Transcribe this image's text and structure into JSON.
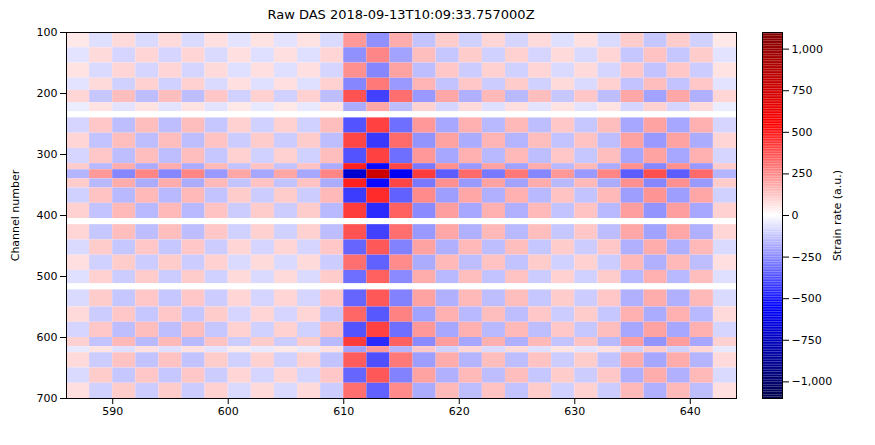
{
  "chart_data": {
    "type": "heatmap",
    "title": "Raw DAS 2018-09-13T10:09:33.757000Z",
    "y_label": "Channel number",
    "xlim": [
      586,
      644
    ],
    "xticks": [
      590,
      600,
      610,
      620,
      630,
      640
    ],
    "ylim": [
      100,
      700
    ],
    "yticks": [
      100,
      200,
      300,
      400,
      500,
      600,
      700
    ],
    "x_edges": [
      586,
      588,
      590,
      592,
      594,
      596,
      598,
      600,
      602,
      604,
      606,
      608,
      610,
      612,
      614,
      616,
      618,
      620,
      622,
      624,
      626,
      628,
      630,
      632,
      634,
      636,
      638,
      640,
      642,
      644
    ],
    "y_edges": [
      100,
      125,
      150,
      175,
      195,
      215,
      230,
      240,
      265,
      290,
      315,
      325,
      340,
      355,
      380,
      405,
      415,
      440,
      465,
      490,
      512,
      522,
      550,
      575,
      600,
      615,
      625,
      650,
      675,
      700
    ],
    "values": [
      [
        50,
        -70,
        80,
        -80,
        80,
        -80,
        70,
        -60,
        60,
        -60,
        60,
        -80,
        220,
        -240,
        180,
        -130,
        110,
        -100,
        90,
        -90,
        80,
        -70,
        70,
        -80,
        110,
        -120,
        110,
        -100,
        50
      ],
      [
        -60,
        80,
        -90,
        90,
        -90,
        90,
        -80,
        70,
        -70,
        70,
        -70,
        90,
        -240,
        260,
        -200,
        140,
        -120,
        110,
        -100,
        100,
        -90,
        80,
        -80,
        90,
        -120,
        130,
        -120,
        110,
        -60
      ],
      [
        60,
        -80,
        90,
        -90,
        90,
        -90,
        80,
        -70,
        70,
        -70,
        70,
        -90,
        240,
        -260,
        200,
        -140,
        120,
        -110,
        100,
        -100,
        90,
        -80,
        80,
        -90,
        120,
        -130,
        120,
        -110,
        60
      ],
      [
        -60,
        80,
        -100,
        100,
        -100,
        100,
        -80,
        70,
        -70,
        70,
        -70,
        100,
        -260,
        290,
        -220,
        160,
        -130,
        120,
        -110,
        110,
        -100,
        80,
        -80,
        100,
        -130,
        140,
        -130,
        120,
        -60
      ],
      [
        90,
        -120,
        140,
        -140,
        140,
        -140,
        120,
        -100,
        100,
        -100,
        100,
        -140,
        370,
        -410,
        310,
        -220,
        190,
        -170,
        150,
        -150,
        140,
        -120,
        120,
        -140,
        190,
        -200,
        190,
        -170,
        90
      ],
      [
        -40,
        60,
        -60,
        60,
        -60,
        60,
        -60,
        50,
        -50,
        50,
        -50,
        60,
        -180,
        190,
        -140,
        100,
        -90,
        80,
        -70,
        70,
        -60,
        60,
        -60,
        60,
        -90,
        100,
        -90,
        80,
        -40
      ],
      [
        0,
        0,
        0,
        0,
        0,
        0,
        0,
        0,
        0,
        0,
        0,
        0,
        0,
        0,
        0,
        0,
        0,
        0,
        0,
        0,
        0,
        0,
        0,
        0,
        0,
        0,
        0,
        0,
        0
      ],
      [
        -90,
        120,
        -140,
        140,
        -140,
        140,
        -120,
        100,
        -100,
        100,
        -100,
        140,
        -370,
        410,
        -310,
        220,
        -190,
        170,
        -150,
        150,
        -140,
        120,
        -120,
        140,
        -190,
        200,
        -190,
        170,
        -90
      ],
      [
        90,
        -130,
        140,
        -140,
        140,
        -140,
        130,
        -110,
        110,
        -110,
        110,
        -140,
        400,
        -430,
        320,
        -230,
        200,
        -180,
        160,
        -160,
        140,
        -130,
        130,
        -140,
        200,
        -220,
        200,
        -180,
        90
      ],
      [
        -90,
        120,
        -140,
        140,
        -140,
        140,
        -120,
        100,
        -100,
        100,
        -100,
        140,
        -370,
        410,
        -310,
        220,
        -190,
        170,
        -150,
        150,
        -140,
        120,
        -120,
        140,
        -190,
        200,
        -190,
        170,
        -90
      ],
      [
        110,
        -150,
        180,
        -180,
        180,
        -180,
        150,
        -130,
        130,
        -130,
        130,
        -180,
        480,
        -530,
        400,
        -290,
        240,
        -220,
        200,
        -200,
        180,
        -150,
        150,
        -180,
        240,
        -260,
        240,
        -220,
        110
      ],
      [
        -160,
        220,
        -260,
        260,
        -260,
        260,
        -220,
        190,
        -190,
        190,
        -190,
        260,
        -700,
        770,
        -580,
        420,
        -350,
        320,
        -290,
        290,
        -260,
        220,
        -220,
        260,
        -350,
        380,
        -350,
        320,
        -160
      ],
      [
        110,
        -150,
        180,
        -180,
        180,
        -180,
        150,
        -130,
        130,
        -130,
        130,
        -180,
        480,
        -530,
        400,
        -290,
        240,
        -220,
        200,
        -200,
        180,
        -150,
        150,
        -180,
        240,
        -260,
        240,
        -220,
        110
      ],
      [
        -100,
        130,
        -150,
        150,
        -150,
        150,
        -130,
        110,
        -110,
        110,
        -110,
        150,
        -420,
        460,
        -340,
        250,
        -210,
        190,
        -170,
        170,
        -150,
        130,
        -130,
        150,
        -210,
        230,
        -210,
        190,
        -100
      ],
      [
        100,
        -130,
        150,
        -150,
        150,
        -150,
        130,
        -110,
        110,
        -110,
        110,
        -150,
        420,
        -460,
        340,
        -250,
        210,
        -190,
        170,
        -170,
        150,
        -130,
        130,
        -150,
        210,
        -230,
        210,
        -190,
        100
      ],
      [
        0,
        0,
        0,
        0,
        0,
        0,
        0,
        0,
        0,
        0,
        0,
        0,
        0,
        0,
        0,
        0,
        0,
        0,
        0,
        0,
        0,
        0,
        0,
        0,
        0,
        0,
        0,
        0,
        0
      ],
      [
        90,
        -120,
        140,
        -140,
        140,
        -140,
        120,
        -100,
        100,
        -100,
        100,
        -140,
        370,
        -410,
        310,
        -220,
        190,
        -170,
        150,
        -150,
        140,
        -120,
        120,
        -140,
        190,
        -200,
        190,
        -170,
        90
      ],
      [
        -80,
        110,
        -120,
        120,
        -120,
        120,
        -110,
        90,
        -90,
        90,
        -90,
        120,
        -330,
        360,
        -270,
        200,
        -170,
        150,
        -140,
        140,
        -120,
        110,
        -110,
        120,
        -170,
        180,
        -170,
        150,
        -80
      ],
      [
        70,
        -100,
        110,
        -110,
        110,
        -110,
        100,
        -80,
        80,
        -80,
        80,
        -110,
        310,
        -340,
        250,
        -180,
        150,
        -140,
        130,
        -130,
        110,
        -100,
        100,
        -110,
        150,
        -170,
        150,
        -140,
        70
      ],
      [
        -70,
        100,
        -110,
        110,
        -110,
        110,
        -100,
        80,
        -80,
        80,
        -80,
        110,
        -310,
        340,
        -250,
        180,
        -150,
        140,
        -130,
        130,
        -110,
        100,
        -100,
        110,
        -150,
        170,
        -150,
        140,
        -70
      ],
      [
        0,
        0,
        0,
        0,
        0,
        0,
        0,
        0,
        0,
        0,
        0,
        0,
        0,
        0,
        0,
        0,
        0,
        0,
        0,
        0,
        0,
        0,
        0,
        0,
        0,
        0,
        0,
        0,
        0
      ],
      [
        -80,
        110,
        -120,
        120,
        -120,
        120,
        -110,
        90,
        -90,
        90,
        -90,
        120,
        -330,
        360,
        -270,
        200,
        -170,
        150,
        -140,
        140,
        -120,
        110,
        -110,
        120,
        -170,
        180,
        -170,
        150,
        -80
      ],
      [
        80,
        -110,
        120,
        -120,
        120,
        -120,
        110,
        -90,
        90,
        -90,
        90,
        -120,
        330,
        -360,
        270,
        -200,
        170,
        -150,
        140,
        -140,
        120,
        -110,
        110,
        -120,
        170,
        -180,
        170,
        -150,
        80
      ],
      [
        -90,
        120,
        -140,
        140,
        -140,
        140,
        -120,
        100,
        -100,
        100,
        -100,
        140,
        -370,
        410,
        -310,
        220,
        -190,
        170,
        -150,
        150,
        -140,
        120,
        -120,
        140,
        -190,
        200,
        -190,
        170,
        -90
      ],
      [
        100,
        -130,
        150,
        -150,
        150,
        -150,
        130,
        -110,
        110,
        -110,
        110,
        -150,
        420,
        -460,
        340,
        -250,
        210,
        -190,
        170,
        -170,
        150,
        -130,
        130,
        -150,
        210,
        -230,
        210,
        -190,
        100
      ],
      [
        -50,
        60,
        -70,
        70,
        -70,
        70,
        -60,
        50,
        -50,
        50,
        -50,
        70,
        -200,
        220,
        -160,
        120,
        -100,
        90,
        -80,
        80,
        -70,
        60,
        -60,
        70,
        -100,
        110,
        -100,
        90,
        -50
      ],
      [
        80,
        -110,
        130,
        -130,
        130,
        -130,
        110,
        -100,
        100,
        -100,
        100,
        -130,
        350,
        -380,
        290,
        -210,
        180,
        -160,
        140,
        -140,
        130,
        -110,
        110,
        -130,
        180,
        -190,
        180,
        -160,
        80
      ],
      [
        -80,
        110,
        -120,
        120,
        -120,
        120,
        -110,
        90,
        -90,
        90,
        -90,
        120,
        -330,
        360,
        -270,
        200,
        -170,
        150,
        -140,
        140,
        -120,
        110,
        -110,
        120,
        -170,
        180,
        -170,
        150,
        -80
      ],
      [
        70,
        -100,
        110,
        -110,
        110,
        -110,
        100,
        -80,
        80,
        -80,
        80,
        -110,
        310,
        -340,
        250,
        -180,
        150,
        -140,
        130,
        -130,
        110,
        -100,
        100,
        -110,
        150,
        -170,
        150,
        -140,
        70
      ]
    ],
    "colorbar": {
      "label": "Strain rate (a.u.)",
      "lim": [
        -1100,
        1100
      ],
      "ticks": [
        -1000,
        -750,
        -500,
        -250,
        0,
        250,
        500,
        750,
        1000
      ]
    }
  }
}
